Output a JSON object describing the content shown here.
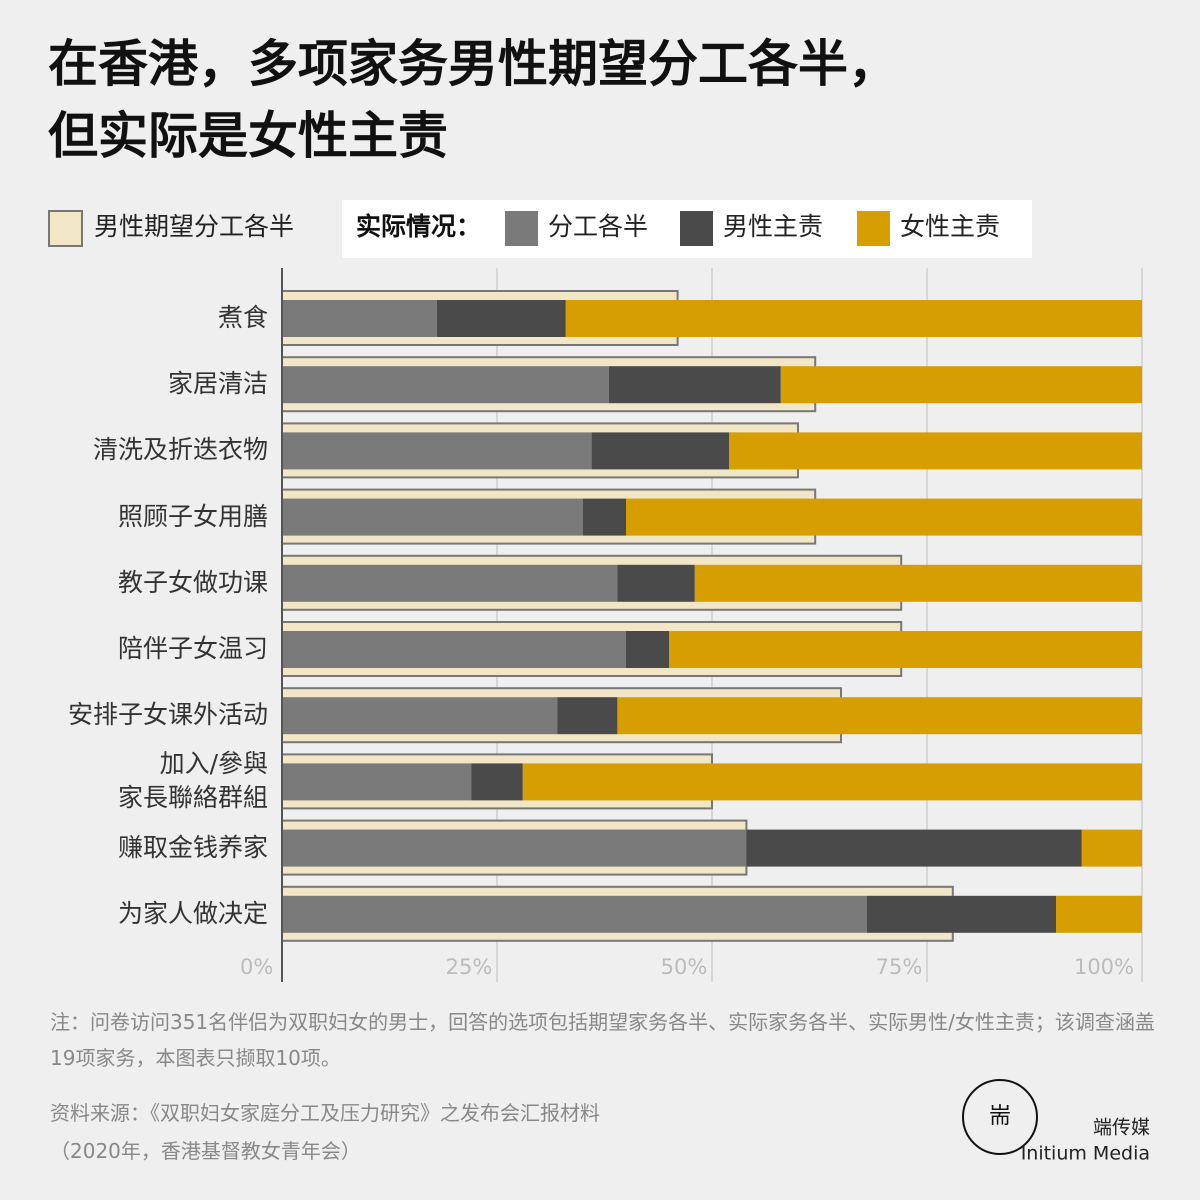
{
  "chart_data": {
    "type": "stacked-barh",
    "title": "在香港，多项家务男性期望分工各半，\n但实际是女性主责",
    "legend_group_label": "实际情况：",
    "categories": [
      "煮食",
      "家居清洁",
      "清洗及折迭衣物",
      "照顾子女用膳",
      "教子女做功课",
      "陪伴子女温习",
      "安排子女课外活动",
      "加入/參與\n家長聯絡群組",
      "赚取金钱养家",
      "为家人做决定"
    ],
    "expected": {
      "name": "男性期望分工各半",
      "color": "#f1e6c6",
      "values": [
        46,
        62,
        60,
        62,
        72,
        72,
        65,
        50,
        54,
        78
      ]
    },
    "series": [
      {
        "name": "分工各半",
        "color": "#7a7a7a",
        "values": [
          18,
          38,
          36,
          35,
          39,
          40,
          32,
          22,
          54,
          68
        ]
      },
      {
        "name": "男性主责",
        "color": "#4a4a4a",
        "values": [
          15,
          20,
          16,
          5,
          9,
          5,
          7,
          6,
          39,
          22
        ]
      },
      {
        "name": "女性主责",
        "color": "#d69e00",
        "values": [
          67,
          42,
          48,
          60,
          52,
          55,
          61,
          72,
          7,
          10
        ]
      }
    ],
    "xlim": [
      0,
      100
    ],
    "xticks": [
      {
        "value": 0,
        "label": "0%"
      },
      {
        "value": 25,
        "label": "25%"
      },
      {
        "value": 50,
        "label": "50%"
      },
      {
        "value": 75,
        "label": "75%"
      },
      {
        "value": 100,
        "label": "100%"
      }
    ],
    "grid": true,
    "note": "注：问卷访问351名伴侣为双职妇女的男士，回答的选项包括期望家务各半、实际家务各半、实际男性/女性主责；该调查涵盖19项家务，本图表只撷取10项。",
    "source": "资料来源：《双职妇女家庭分工及压力研究》之发布会汇报材料\n（2020年，香港基督教女青年会）",
    "brand": "端传媒",
    "brand_en": "Initium Media"
  }
}
